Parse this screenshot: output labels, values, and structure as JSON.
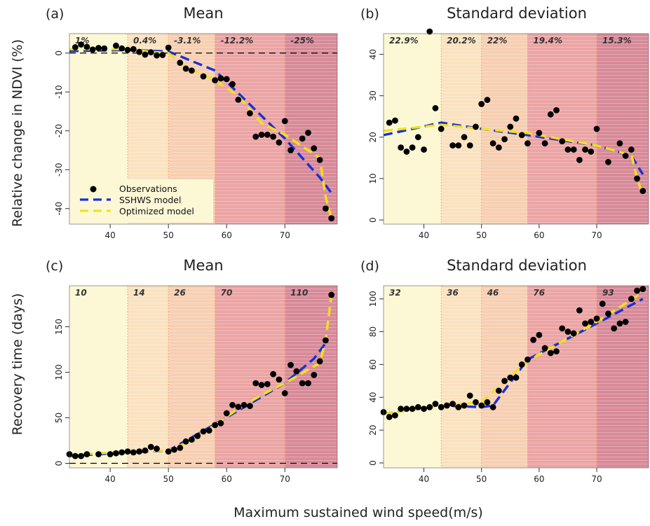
{
  "figure": {
    "xlabel": "Maximum sustained wind speed(m/s)",
    "ylabel_top": "Relative change in NDVI (%)",
    "ylabel_bottom": "Recovery time (days)",
    "colors": {
      "observations": "#000000",
      "sshws": "#1530d8",
      "optimized": "#f2e21a",
      "zones": [
        "#fcf8d6",
        "#fae2c0",
        "#f7cfb2",
        "#eba4a4",
        "#d88a98"
      ]
    }
  },
  "legend": {
    "observations": "Observations",
    "sshws": "SSHWS model",
    "optimized": "Optimized model"
  },
  "chart_data": [
    {
      "panel": "(a)",
      "type": "scatter",
      "title": "Mean",
      "xlim": [
        33,
        79
      ],
      "ylim": [
        -44,
        5
      ],
      "xticks": [
        40,
        50,
        60,
        70
      ],
      "yticks": [
        0,
        -10,
        -20,
        -30,
        -40
      ],
      "zero_line": true,
      "zone_edges": [
        43,
        50,
        58,
        70
      ],
      "zone_labels": [
        "1%",
        "0.4%",
        "-3.1%",
        "-12.2%",
        "-25%"
      ],
      "observations": [
        [
          34,
          1.5
        ],
        [
          35,
          2.2
        ],
        [
          36,
          1.6
        ],
        [
          37,
          0.9
        ],
        [
          38,
          1.3
        ],
        [
          39,
          1.2
        ],
        [
          41,
          1.9
        ],
        [
          42,
          1.2
        ],
        [
          43,
          0.8
        ],
        [
          44,
          1.0
        ],
        [
          45,
          0.3
        ],
        [
          46,
          -0.4
        ],
        [
          47,
          0.2
        ],
        [
          48,
          -0.6
        ],
        [
          49,
          -0.5
        ],
        [
          50,
          1.4
        ],
        [
          52,
          -2.5
        ],
        [
          53,
          -4.0
        ],
        [
          54,
          -4.5
        ],
        [
          56,
          -6.0
        ],
        [
          58,
          -7.0
        ],
        [
          59,
          -6.5
        ],
        [
          60,
          -6.7
        ],
        [
          61,
          -8.0
        ],
        [
          62,
          -12.0
        ],
        [
          64,
          -15.5
        ],
        [
          65,
          -21.5
        ],
        [
          66,
          -21.0
        ],
        [
          67,
          -21.0
        ],
        [
          68,
          -21.5
        ],
        [
          69,
          -23.0
        ],
        [
          70,
          -17.5
        ],
        [
          71,
          -25.0
        ],
        [
          73,
          -22.0
        ],
        [
          74,
          -20.5
        ],
        [
          75,
          -24.5
        ],
        [
          76,
          -27.5
        ],
        [
          77,
          -40.0
        ],
        [
          78,
          -42.5
        ]
      ],
      "series": [
        {
          "name": "SSHWS model",
          "points": [
            [
              33,
              0.5
            ],
            [
              43,
              0.8
            ],
            [
              50,
              0.4
            ],
            [
              58,
              -4.5
            ],
            [
              70,
              -22
            ],
            [
              76,
              -32
            ],
            [
              78,
              -36
            ]
          ]
        },
        {
          "name": "Optimized model",
          "points": [
            [
              33,
              1
            ],
            [
              43,
              1
            ],
            [
              47,
              0.3
            ],
            [
              50,
              0
            ],
            [
              53,
              -3.5
            ],
            [
              58,
              -7
            ],
            [
              62,
              -11
            ],
            [
              66,
              -18
            ],
            [
              70,
              -21
            ],
            [
              73,
              -24
            ],
            [
              76,
              -27
            ],
            [
              77,
              -37
            ],
            [
              78,
              -42.5
            ]
          ]
        }
      ]
    },
    {
      "panel": "(b)",
      "type": "scatter",
      "title": "Standard deviation",
      "xlim": [
        33,
        79
      ],
      "ylim": [
        -1,
        45
      ],
      "xticks": [
        40,
        50,
        60,
        70
      ],
      "yticks": [
        0,
        10,
        20,
        30,
        40
      ],
      "zone_edges": [
        43,
        50,
        58,
        70
      ],
      "zone_labels": [
        "22.9%",
        "20.2%",
        "22%",
        "19.4%",
        "15.3%"
      ],
      "observations": [
        [
          34,
          23.5
        ],
        [
          35,
          24.0
        ],
        [
          36,
          17.5
        ],
        [
          37,
          16.5
        ],
        [
          38,
          17.5
        ],
        [
          39,
          20.0
        ],
        [
          40,
          17.0
        ],
        [
          41,
          45.5
        ],
        [
          42,
          27.0
        ],
        [
          43,
          22.0
        ],
        [
          45,
          18.0
        ],
        [
          46,
          18.0
        ],
        [
          47,
          20.0
        ],
        [
          48,
          18.0
        ],
        [
          49,
          22.5
        ],
        [
          50,
          28.0
        ],
        [
          51,
          29.0
        ],
        [
          52,
          18.5
        ],
        [
          53,
          17.5
        ],
        [
          54,
          19.5
        ],
        [
          55,
          22.5
        ],
        [
          56,
          24.5
        ],
        [
          57,
          20.5
        ],
        [
          58,
          18.5
        ],
        [
          60,
          21.0
        ],
        [
          61,
          18.5
        ],
        [
          62,
          25.5
        ],
        [
          63,
          26.5
        ],
        [
          64,
          19.0
        ],
        [
          65,
          17.0
        ],
        [
          66,
          17.0
        ],
        [
          67,
          14.5
        ],
        [
          68,
          17.0
        ],
        [
          69,
          16.5
        ],
        [
          70,
          22.0
        ],
        [
          72,
          14.0
        ],
        [
          74,
          18.5
        ],
        [
          75,
          15.5
        ],
        [
          76,
          17.0
        ],
        [
          77,
          10.0
        ],
        [
          78,
          7.0
        ]
      ],
      "series": [
        {
          "name": "SSHWS model",
          "points": [
            [
              33,
              20.5
            ],
            [
              43,
              23.5
            ],
            [
              50,
              22
            ],
            [
              58,
              20.5
            ],
            [
              70,
              18
            ],
            [
              76,
              15.5
            ],
            [
              78,
              11
            ]
          ]
        },
        {
          "name": "Optimized model",
          "points": [
            [
              33,
              21.5
            ],
            [
              43,
              23
            ],
            [
              50,
              22
            ],
            [
              58,
              21
            ],
            [
              70,
              18
            ],
            [
              75,
              16
            ],
            [
              76,
              16
            ],
            [
              77,
              10
            ],
            [
              78,
              6
            ]
          ]
        }
      ]
    },
    {
      "panel": "(c)",
      "type": "scatter",
      "title": "Mean",
      "xlim": [
        33,
        79
      ],
      "ylim": [
        -5,
        195
      ],
      "xticks": [
        40,
        50,
        60,
        70
      ],
      "yticks": [
        0,
        50,
        100,
        150
      ],
      "zero_line": true,
      "zone_edges": [
        43,
        50,
        58,
        70
      ],
      "zone_labels": [
        "10",
        "14",
        "26",
        "70",
        "110"
      ],
      "observations": [
        [
          33,
          10
        ],
        [
          34,
          8
        ],
        [
          35,
          8
        ],
        [
          36,
          10
        ],
        [
          38,
          10
        ],
        [
          40,
          10
        ],
        [
          41,
          11
        ],
        [
          42,
          12
        ],
        [
          43,
          13
        ],
        [
          44,
          12
        ],
        [
          45,
          13
        ],
        [
          46,
          14
        ],
        [
          47,
          18
        ],
        [
          48,
          16
        ],
        [
          50,
          13
        ],
        [
          51,
          15
        ],
        [
          52,
          17
        ],
        [
          53,
          24
        ],
        [
          54,
          26
        ],
        [
          55,
          30
        ],
        [
          56,
          35
        ],
        [
          57,
          36
        ],
        [
          58,
          42
        ],
        [
          59,
          44
        ],
        [
          60,
          55
        ],
        [
          61,
          64
        ],
        [
          62,
          62
        ],
        [
          63,
          64
        ],
        [
          64,
          63
        ],
        [
          65,
          88
        ],
        [
          66,
          86
        ],
        [
          67,
          87
        ],
        [
          68,
          98
        ],
        [
          69,
          92
        ],
        [
          70,
          77
        ],
        [
          71,
          108
        ],
        [
          72,
          101
        ],
        [
          73,
          88
        ],
        [
          74,
          88
        ],
        [
          75,
          97
        ],
        [
          76,
          112
        ],
        [
          77,
          135
        ],
        [
          78,
          185
        ]
      ],
      "series": [
        {
          "name": "SSHWS model",
          "points": [
            [
              33,
              8
            ],
            [
              43,
              12
            ],
            [
              50,
              14
            ],
            [
              58,
              43
            ],
            [
              70,
              88
            ],
            [
              75,
              115
            ],
            [
              77,
              132
            ]
          ]
        },
        {
          "name": "Optimized model",
          "points": [
            [
              33,
              9
            ],
            [
              43,
              13
            ],
            [
              50,
              14
            ],
            [
              54,
              25
            ],
            [
              58,
              42
            ],
            [
              62,
              60
            ],
            [
              66,
              75
            ],
            [
              70,
              88
            ],
            [
              74,
              103
            ],
            [
              76,
              110
            ],
            [
              77,
              135
            ],
            [
              78,
              185
            ]
          ]
        }
      ]
    },
    {
      "panel": "(d)",
      "type": "scatter",
      "title": "Standard deviation",
      "xlim": [
        33,
        79
      ],
      "ylim": [
        -3,
        108
      ],
      "xticks": [
        40,
        50,
        60,
        70
      ],
      "yticks": [
        0,
        20,
        40,
        60,
        80,
        100
      ],
      "zone_edges": [
        43,
        50,
        58,
        70
      ],
      "zone_labels": [
        "32",
        "36",
        "46",
        "76",
        "93"
      ],
      "observations": [
        [
          33,
          31
        ],
        [
          34,
          28
        ],
        [
          35,
          29
        ],
        [
          36,
          33
        ],
        [
          37,
          33
        ],
        [
          38,
          33
        ],
        [
          39,
          34
        ],
        [
          40,
          33
        ],
        [
          41,
          34
        ],
        [
          42,
          36
        ],
        [
          43,
          34
        ],
        [
          44,
          35
        ],
        [
          45,
          36
        ],
        [
          46,
          34
        ],
        [
          47,
          35
        ],
        [
          48,
          41
        ],
        [
          49,
          37
        ],
        [
          50,
          35
        ],
        [
          51,
          37
        ],
        [
          52,
          34
        ],
        [
          53,
          44
        ],
        [
          54,
          50
        ],
        [
          55,
          52
        ],
        [
          56,
          52
        ],
        [
          57,
          60
        ],
        [
          58,
          63
        ],
        [
          59,
          75
        ],
        [
          60,
          78
        ],
        [
          61,
          70
        ],
        [
          62,
          67
        ],
        [
          63,
          68
        ],
        [
          64,
          82
        ],
        [
          65,
          80
        ],
        [
          66,
          79
        ],
        [
          67,
          93
        ],
        [
          68,
          85
        ],
        [
          69,
          86
        ],
        [
          70,
          88
        ],
        [
          71,
          97
        ],
        [
          72,
          91
        ],
        [
          73,
          82
        ],
        [
          74,
          85
        ],
        [
          75,
          86
        ],
        [
          76,
          100
        ],
        [
          77,
          105
        ],
        [
          78,
          106
        ]
      ],
      "series": [
        {
          "name": "SSHWS model",
          "points": [
            [
              33,
              30
            ],
            [
              43,
              35
            ],
            [
              50,
              34
            ],
            [
              52,
              35
            ],
            [
              58,
              63
            ],
            [
              70,
              85
            ],
            [
              78,
              100
            ]
          ]
        },
        {
          "name": "Optimized model",
          "points": [
            [
              33,
              30
            ],
            [
              43,
              35
            ],
            [
              50,
              37
            ],
            [
              58,
              62
            ],
            [
              70,
              86
            ],
            [
              78,
              104
            ]
          ]
        }
      ]
    }
  ]
}
